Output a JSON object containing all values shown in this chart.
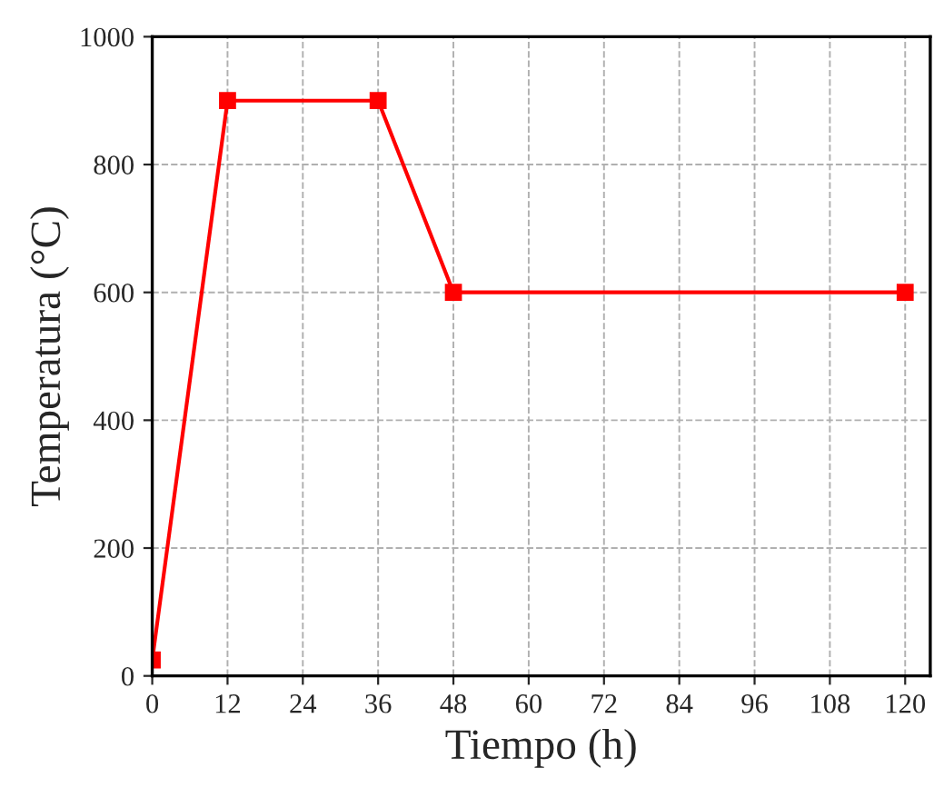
{
  "chart_data": {
    "type": "line",
    "xlabel": "Tiempo (h)",
    "ylabel": "Temperatura (°C)",
    "x": [
      0,
      12,
      36,
      48,
      120
    ],
    "series": [
      {
        "color": "#ff0000",
        "values": [
          25,
          900,
          900,
          600,
          600
        ]
      }
    ],
    "xlim": [
      0,
      124
    ],
    "xticks": [
      0,
      12,
      24,
      36,
      48,
      60,
      72,
      84,
      96,
      108,
      120
    ],
    "ylim": [
      0,
      1000
    ],
    "yticks": [
      0,
      200,
      400,
      600,
      800,
      1000
    ],
    "grid": true,
    "marker": "square",
    "line_style": "solid",
    "legend": false
  }
}
